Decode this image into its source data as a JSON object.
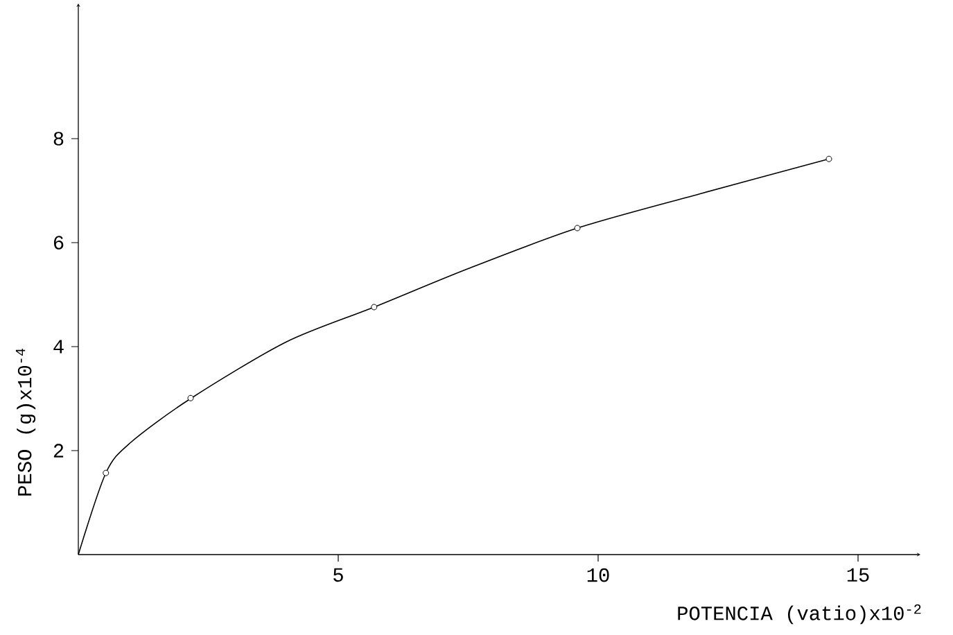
{
  "chart_data": {
    "type": "line",
    "xlabel": "POTENCIA (vatio)x10$^{-2}$",
    "ylabel": "PESO (g)x10$^{-4}$",
    "xlim": [
      0,
      16.2
    ],
    "ylim": [
      0,
      10.6
    ],
    "xticks": [
      5,
      10,
      15
    ],
    "yticks": [
      2,
      4,
      6,
      8
    ],
    "grid": false,
    "marker": "circle",
    "series": [
      {
        "color": "#000000",
        "marker": "none",
        "x": [
          0,
          0.53,
          1.0,
          2.16,
          4.0,
          5.69,
          7.5,
          9.6,
          12.0,
          14.44
        ],
        "values": [
          0,
          1.57,
          2.15,
          3.0,
          4.09,
          4.76,
          5.5,
          6.28,
          6.95,
          7.61
        ]
      },
      {
        "type": "scatter",
        "color": "#000000",
        "x": [
          0.53,
          2.16,
          5.69,
          9.6,
          14.44
        ],
        "values": [
          1.57,
          3.01,
          4.76,
          6.28,
          7.61
        ]
      }
    ]
  }
}
